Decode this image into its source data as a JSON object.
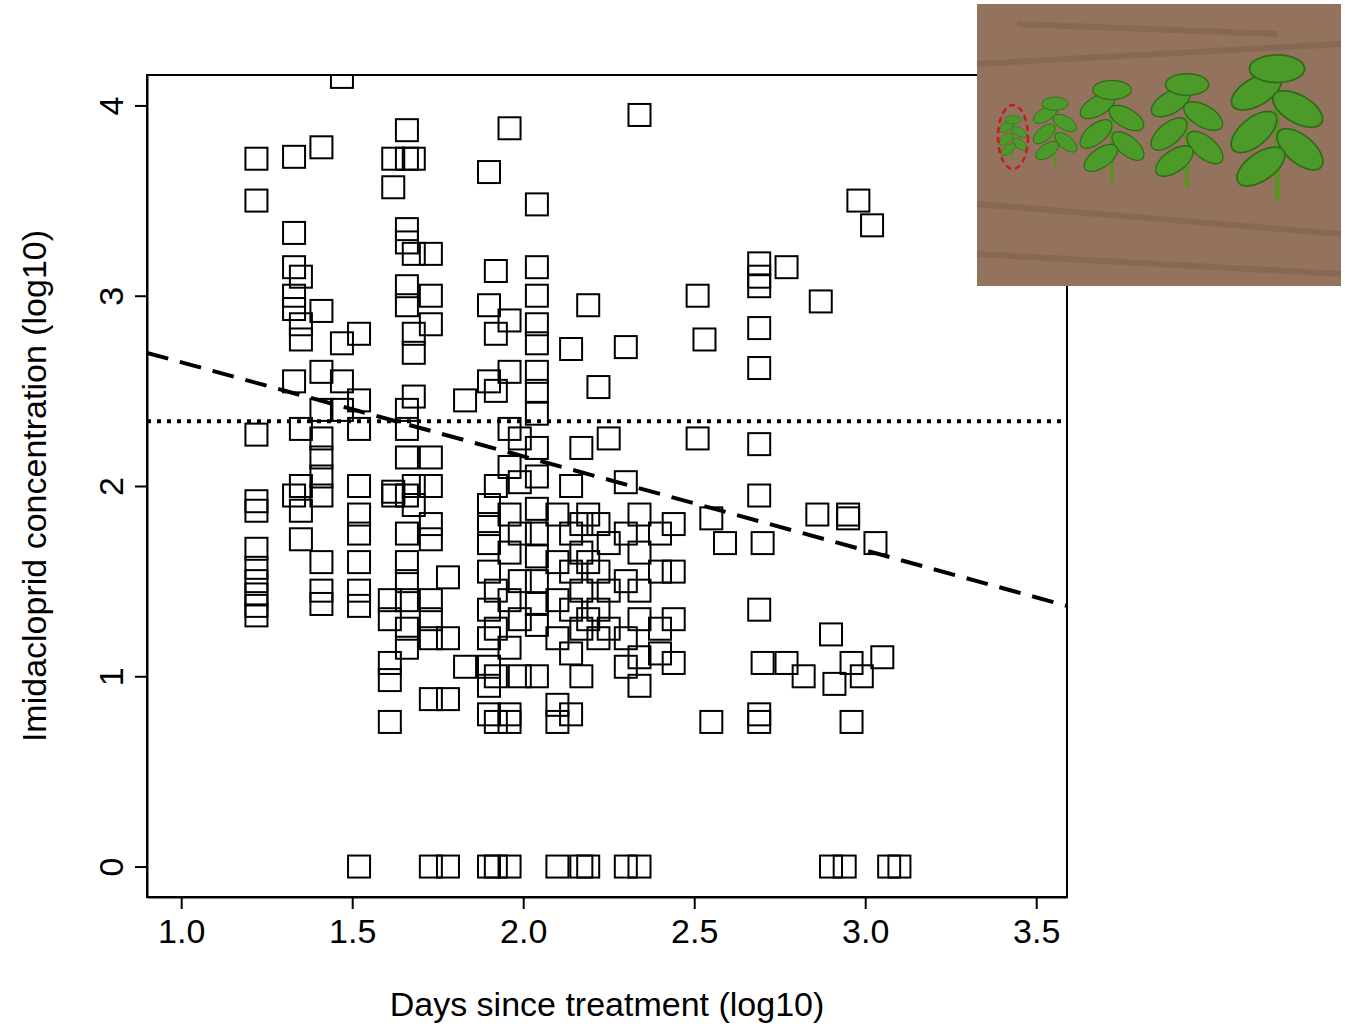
{
  "chart_data": {
    "type": "scatter",
    "marker": "square",
    "x_label": "Days since treatment (log10)",
    "y_label": "Imidacloprid concentration (log10)",
    "xlim": [
      0.9,
      3.59
    ],
    "ylim": [
      -0.16,
      4.16
    ],
    "xticks": [
      {
        "value": 1,
        "label": "1.0"
      },
      {
        "value": 1.5,
        "label": "1.5"
      },
      {
        "value": 2,
        "label": "2.0"
      },
      {
        "value": 2.5,
        "label": "2.5"
      },
      {
        "value": 3,
        "label": "3.0"
      },
      {
        "value": 3.5,
        "label": "3.5"
      }
    ],
    "yticks": [
      0,
      1,
      2,
      3,
      4
    ],
    "x": [
      1.22,
      1.22,
      1.22,
      1.22,
      1.22,
      1.22,
      1.22,
      1.22,
      1.22,
      1.22,
      1.22,
      1.33,
      1.33,
      1.33,
      1.33,
      1.33,
      1.33,
      1.33,
      1.35,
      1.35,
      1.35,
      1.35,
      1.35,
      1.35,
      1.35,
      1.41,
      1.41,
      1.41,
      1.41,
      1.41,
      1.41,
      1.41,
      1.41,
      1.41,
      1.41,
      1.41,
      1.47,
      1.47,
      1.47,
      1.47,
      1.52,
      1.52,
      1.52,
      1.52,
      1.52,
      1.52,
      1.52,
      1.52,
      1.52,
      1.52,
      1.61,
      1.61,
      1.61,
      1.61,
      1.61,
      1.62,
      1.62,
      1.62,
      1.62,
      1.66,
      1.66,
      1.66,
      1.66,
      1.66,
      1.66,
      1.66,
      1.66,
      1.66,
      1.66,
      1.66,
      1.66,
      1.66,
      1.66,
      1.66,
      1.66,
      1.68,
      1.68,
      1.68,
      1.68,
      1.68,
      1.68,
      1.68,
      1.73,
      1.73,
      1.73,
      1.73,
      1.73,
      1.73,
      1.73,
      1.73,
      1.73,
      1.73,
      1.73,
      1.73,
      1.78,
      1.78,
      1.78,
      1.78,
      1.83,
      1.83,
      1.9,
      1.9,
      1.9,
      1.9,
      1.9,
      1.9,
      1.9,
      1.9,
      1.9,
      1.9,
      1.9,
      1.9,
      1.9,
      1.92,
      1.92,
      1.92,
      1.92,
      1.92,
      1.92,
      1.92,
      1.92,
      1.92,
      1.96,
      1.96,
      1.96,
      1.96,
      1.96,
      1.96,
      1.96,
      1.96,
      1.96,
      1.96,
      1.96,
      1.96,
      1.99,
      1.99,
      1.99,
      1.99,
      1.99,
      1.99,
      2.04,
      2.04,
      2.04,
      2.04,
      2.04,
      2.04,
      2.04,
      2.04,
      2.04,
      2.04,
      2.04,
      2.04,
      2.04,
      2.04,
      2.04,
      2.04,
      2.04,
      2.1,
      2.1,
      2.1,
      2.1,
      2.1,
      2.1,
      2.1,
      2.14,
      2.14,
      2.14,
      2.14,
      2.14,
      2.14,
      2.14,
      2.17,
      2.17,
      2.17,
      2.17,
      2.17,
      2.17,
      2.17,
      2.19,
      2.19,
      2.19,
      2.19,
      2.19,
      2.22,
      2.22,
      2.22,
      2.22,
      2.22,
      2.25,
      2.25,
      2.25,
      2.25,
      2.3,
      2.3,
      2.3,
      2.3,
      2.3,
      2.3,
      2.3,
      2.34,
      2.34,
      2.34,
      2.34,
      2.34,
      2.34,
      2.34,
      2.34,
      2.4,
      2.4,
      2.4,
      2.4,
      2.44,
      2.44,
      2.44,
      2.44,
      2.51,
      2.51,
      2.53,
      2.55,
      2.55,
      2.59,
      2.69,
      2.69,
      2.69,
      2.69,
      2.69,
      2.69,
      2.69,
      2.69,
      2.69,
      2.69,
      2.7,
      2.7,
      2.77,
      2.77,
      2.82,
      2.86,
      2.87,
      2.9,
      2.9,
      2.91,
      2.94,
      2.95,
      2.95,
      2.96,
      2.96,
      2.98,
      2.99,
      3.02,
      3.03,
      3.05,
      3.07,
      3.1
    ],
    "y": [
      3.72,
      3.5,
      2.27,
      1.92,
      1.87,
      1.67,
      1.57,
      1.5,
      1.43,
      1.37,
      1.32,
      3.73,
      3.33,
      3.15,
      3.0,
      2.93,
      2.55,
      1.95,
      3.1,
      2.85,
      2.77,
      2.3,
      2.0,
      1.87,
      1.72,
      3.78,
      2.92,
      2.6,
      2.4,
      2.25,
      2.15,
      2.05,
      1.95,
      1.6,
      1.45,
      1.38,
      4.15,
      2.75,
      2.55,
      2.4,
      2.8,
      2.45,
      2.3,
      2.0,
      1.85,
      1.75,
      1.6,
      1.45,
      1.37,
      0,
      1.4,
      1.3,
      1.07,
      0.98,
      0.76,
      3.72,
      3.57,
      1.97,
      1.95,
      3.87,
      3.72,
      3.35,
      3.28,
      3.05,
      2.95,
      2.4,
      2.3,
      2.15,
      1.95,
      1.75,
      1.6,
      1.5,
      1.4,
      1.25,
      1.15,
      3.72,
      3.22,
      2.8,
      2.7,
      2.47,
      2.0,
      1.9,
      3.22,
      3.0,
      2.85,
      2.15,
      2.0,
      1.8,
      1.72,
      1.4,
      1.3,
      1.2,
      0.88,
      0,
      1.52,
      1.2,
      0.88,
      0,
      2.45,
      1.05,
      3.65,
      2.95,
      2.55,
      1.9,
      1.8,
      1.7,
      1.55,
      1.35,
      1.2,
      1.05,
      0.95,
      0.8,
      0,
      3.13,
      2.8,
      2.5,
      2.0,
      1.45,
      1.25,
      1.0,
      0.76,
      0,
      3.88,
      2.87,
      2.6,
      2.3,
      2.1,
      1.85,
      1.65,
      1.4,
      1.15,
      0.8,
      0.76,
      0,
      2.25,
      2.02,
      1.75,
      1.5,
      1.3,
      1.0,
      3.48,
      3.15,
      3.0,
      2.85,
      2.75,
      2.6,
      2.5,
      2.38,
      2.2,
      2.05,
      1.88,
      1.75,
      1.63,
      1.5,
      1.38,
      1.27,
      1.0,
      1.85,
      1.6,
      1.4,
      1.2,
      0.85,
      0.76,
      0,
      2.72,
      2.0,
      1.75,
      1.55,
      1.35,
      1.12,
      0.8,
      2.2,
      1.8,
      1.65,
      1.45,
      1.25,
      1.0,
      0,
      2.95,
      1.85,
      1.6,
      1.3,
      0,
      2.52,
      1.8,
      1.55,
      1.35,
      1.2,
      2.25,
      1.7,
      1.45,
      1.25,
      2.73,
      2.02,
      1.75,
      1.5,
      1.2,
      1.05,
      0,
      3.95,
      1.85,
      1.65,
      1.45,
      1.3,
      1.1,
      0.95,
      0,
      1.75,
      1.55,
      1.25,
      1.12,
      1.8,
      1.55,
      1.3,
      1.07,
      3.0,
      2.25,
      2.77,
      1.83,
      0.76,
      1.7,
      3.17,
      3.1,
      3.05,
      2.83,
      2.62,
      2.22,
      1.95,
      1.35,
      0.8,
      0.76,
      1.7,
      1.07,
      3.15,
      1.07,
      1.0,
      1.85,
      2.97,
      1.22,
      0,
      0.96,
      0,
      1.85,
      1.83,
      1.07,
      0.76,
      3.5,
      1.0,
      3.37,
      1.7,
      1.1,
      0,
      0
    ],
    "lines": [
      {
        "x": [
          0.9,
          3.59
        ],
        "y": [
          2.7,
          1.37
        ],
        "line_style": "dashed"
      },
      {
        "x": [
          0.9,
          3.59
        ],
        "y": [
          2.34,
          2.34
        ],
        "line_style": "dotted"
      }
    ]
  }
}
